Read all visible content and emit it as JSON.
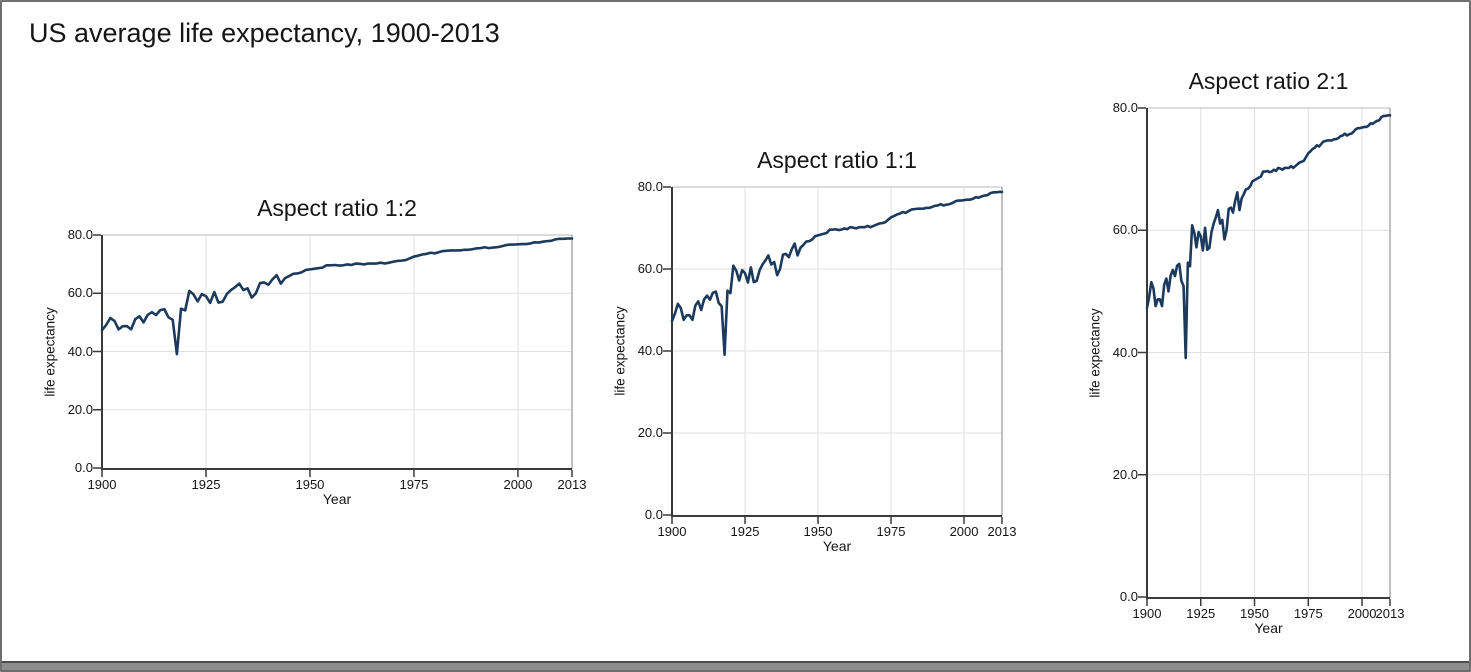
{
  "window": {
    "title": "US average life expectancy, 1900-2013"
  },
  "chart_data": {
    "type": "line",
    "title": "US average life expectancy, 1900-2013",
    "xlabel": "Year",
    "ylabel": "life expectancy",
    "x_range": [
      1900,
      2013
    ],
    "y_range": [
      0,
      80
    ],
    "x_ticks": [
      1900,
      1925,
      1950,
      1975,
      2000,
      2013
    ],
    "x_tick_labels": [
      "1900",
      "1925",
      "1950",
      "1975",
      "2000",
      "2013"
    ],
    "y_ticks": [
      0,
      20,
      40,
      60,
      80
    ],
    "y_tick_labels": [
      "0.0",
      "20.0",
      "40.0",
      "60.0",
      "80.0"
    ],
    "grid": true,
    "legend": "none",
    "line_color": "#1b3a5d",
    "grid_color": "#dfdfdf",
    "top_spine_color": "#c6c6c6",
    "right_spine_color": "#9f9f9f",
    "axis_color": "#3a3a3a",
    "panels": [
      {
        "label": "Aspect ratio 1:2",
        "aspect": "1:2"
      },
      {
        "label": "Aspect ratio 1:1",
        "aspect": "1:1"
      },
      {
        "label": "Aspect ratio 2:1",
        "aspect": "2:1"
      }
    ],
    "series": [
      {
        "name": "US average life expectancy",
        "x": [
          1900,
          1901,
          1902,
          1903,
          1904,
          1905,
          1906,
          1907,
          1908,
          1909,
          1910,
          1911,
          1912,
          1913,
          1914,
          1915,
          1916,
          1917,
          1918,
          1919,
          1920,
          1921,
          1922,
          1923,
          1924,
          1925,
          1926,
          1927,
          1928,
          1929,
          1930,
          1931,
          1932,
          1933,
          1934,
          1935,
          1936,
          1937,
          1938,
          1939,
          1940,
          1941,
          1942,
          1943,
          1944,
          1945,
          1946,
          1947,
          1948,
          1949,
          1950,
          1951,
          1952,
          1953,
          1954,
          1955,
          1956,
          1957,
          1958,
          1959,
          1960,
          1961,
          1962,
          1963,
          1964,
          1965,
          1966,
          1967,
          1968,
          1969,
          1970,
          1971,
          1972,
          1973,
          1974,
          1975,
          1976,
          1977,
          1978,
          1979,
          1980,
          1981,
          1982,
          1983,
          1984,
          1985,
          1986,
          1987,
          1988,
          1989,
          1990,
          1991,
          1992,
          1993,
          1994,
          1995,
          1996,
          1997,
          1998,
          1999,
          2000,
          2001,
          2002,
          2003,
          2004,
          2005,
          2006,
          2007,
          2008,
          2009,
          2010,
          2011,
          2012,
          2013
        ],
        "values": [
          47.3,
          49.1,
          51.5,
          50.5,
          47.6,
          48.7,
          48.7,
          47.6,
          51.1,
          52.1,
          50.0,
          52.6,
          53.5,
          52.5,
          54.2,
          54.5,
          51.7,
          50.9,
          39.1,
          54.7,
          54.1,
          60.8,
          59.6,
          57.2,
          59.7,
          59.0,
          56.7,
          60.4,
          56.8,
          57.1,
          59.7,
          61.1,
          62.1,
          63.3,
          61.1,
          61.7,
          58.5,
          60.0,
          63.5,
          63.7,
          62.9,
          64.8,
          66.2,
          63.3,
          65.2,
          65.9,
          66.7,
          66.8,
          67.2,
          68.0,
          68.2,
          68.4,
          68.6,
          68.8,
          69.6,
          69.6,
          69.7,
          69.5,
          69.6,
          69.9,
          69.7,
          70.2,
          70.1,
          69.9,
          70.2,
          70.2,
          70.2,
          70.5,
          70.2,
          70.5,
          70.8,
          71.1,
          71.2,
          71.4,
          72.0,
          72.6,
          72.9,
          73.3,
          73.5,
          73.9,
          73.7,
          74.1,
          74.5,
          74.6,
          74.7,
          74.7,
          74.7,
          74.9,
          74.9,
          75.1,
          75.4,
          75.5,
          75.8,
          75.5,
          75.7,
          75.8,
          76.1,
          76.5,
          76.7,
          76.7,
          76.8,
          76.9,
          76.9,
          77.1,
          77.5,
          77.4,
          77.7,
          77.9,
          78.0,
          78.5,
          78.7,
          78.7,
          78.8,
          78.8
        ]
      }
    ]
  }
}
